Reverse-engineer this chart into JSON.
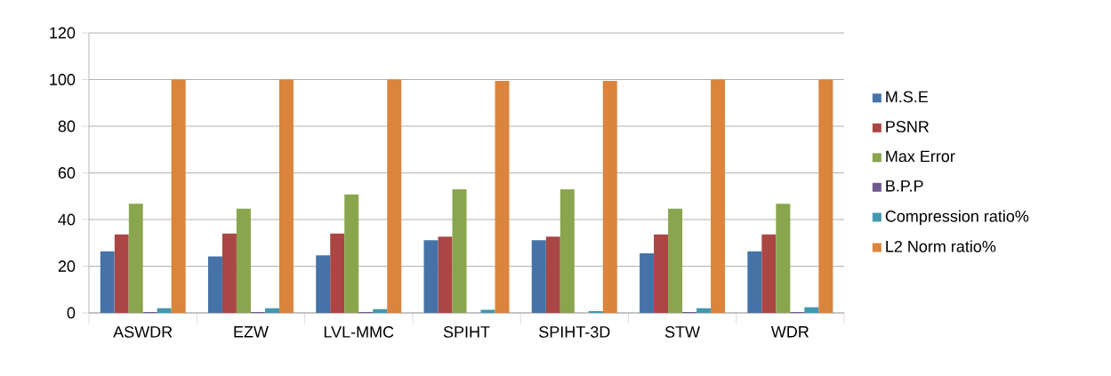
{
  "chart_data": {
    "type": "bar",
    "categories": [
      "ASWDR",
      "EZW",
      "LVL-MMC",
      "SPIHT",
      "SPIHT-3D",
      "STW",
      "WDR"
    ],
    "series": [
      {
        "name": "M.S.E",
        "color": "#4572a7",
        "values": [
          26.4,
          24.2,
          24.7,
          31.1,
          31.1,
          25.5,
          26.4
        ]
      },
      {
        "name": "PSNR",
        "color": "#aa4643",
        "values": [
          33.6,
          34.0,
          34.0,
          32.7,
          32.7,
          33.6,
          33.6
        ]
      },
      {
        "name": "Max Error",
        "color": "#89a54e",
        "values": [
          46.8,
          44.7,
          50.8,
          52.9,
          52.9,
          44.7,
          46.8
        ]
      },
      {
        "name": "B.P.P",
        "color": "#71588f",
        "values": [
          0.4,
          0.4,
          0.4,
          0,
          0,
          0.4,
          0.4
        ]
      },
      {
        "name": "Compression ratio%",
        "color": "#4198af",
        "values": [
          2.0,
          2.0,
          1.6,
          1.3,
          0.8,
          2.0,
          2.5
        ]
      },
      {
        "name": "L2 Norm ratio%",
        "color": "#db843d",
        "values": [
          100,
          100,
          100,
          99.4,
          99.4,
          100,
          100
        ]
      }
    ],
    "ylim": [
      0,
      120
    ],
    "yticks": [
      0,
      20,
      40,
      60,
      80,
      100,
      120
    ],
    "grid": "y",
    "legend": "right"
  }
}
